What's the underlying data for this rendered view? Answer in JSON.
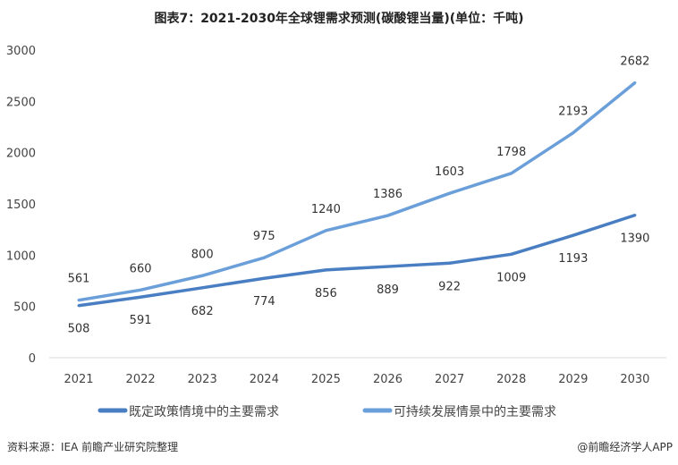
{
  "chart_data": {
    "type": "line",
    "title": "图表7：2021-2030年全球锂需求预测(碳酸锂当量)(单位：千吨)",
    "categories": [
      "2021",
      "2022",
      "2023",
      "2024",
      "2025",
      "2026",
      "2027",
      "2028",
      "2029",
      "2030"
    ],
    "series": [
      {
        "name": "既定政策情境中的主要需求",
        "values": [
          508,
          591,
          682,
          774,
          856,
          889,
          922,
          1009,
          1193,
          1390
        ],
        "color": "#4a7ec2",
        "labels": "below"
      },
      {
        "name": "可持续发展情景中的主要需求",
        "values": [
          561,
          660,
          800,
          975,
          1240,
          1386,
          1603,
          1798,
          2193,
          2682
        ],
        "color": "#6b9fd9",
        "labels": "above"
      }
    ],
    "ylim": [
      0,
      3000
    ],
    "yticks": [
      0,
      500,
      1000,
      1500,
      2000,
      2500,
      3000
    ],
    "grid": false,
    "legend": "bottom"
  },
  "footer": {
    "source": "资料来源：IEA 前瞻产业研究院整理",
    "brand": "@前瞻经济学人APP"
  }
}
